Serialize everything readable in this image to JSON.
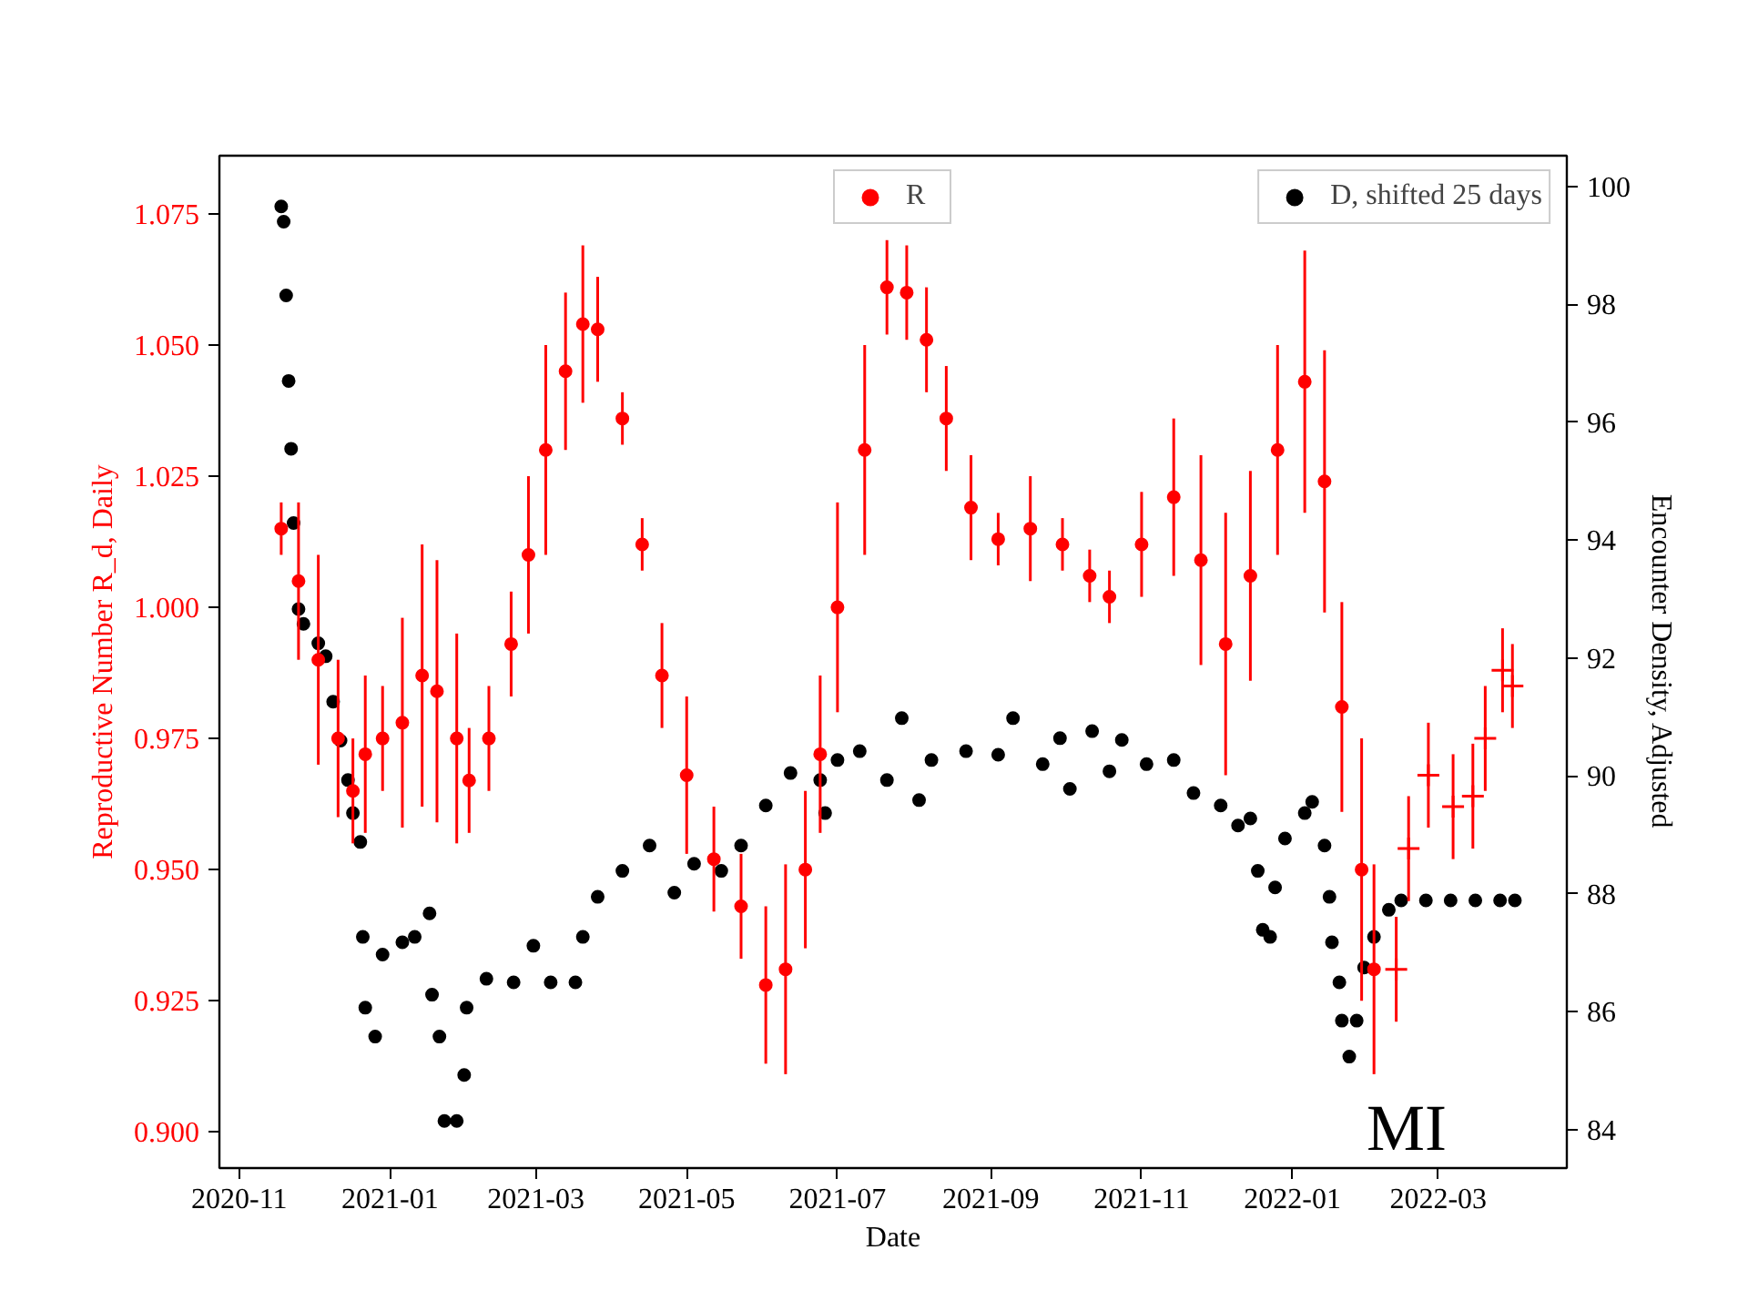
{
  "chart_data": {
    "type": "scatter",
    "xlabel": "Date",
    "ylabel": "Reproductive Number R_d, Daily",
    "y2label": "Encounter Density, Adjusted",
    "annotations": [
      "MI"
    ],
    "xlim": [
      "2020-10-24",
      "2022-04-22"
    ],
    "xticks": [
      "2020-11",
      "2021-01",
      "2021-03",
      "2021-05",
      "2021-07",
      "2021-09",
      "2021-11",
      "2022-01",
      "2022-03"
    ],
    "ylim": [
      0.8931,
      1.0861
    ],
    "yticks": [
      {
        "value": 0.9,
        "label": "0.900"
      },
      {
        "value": 0.925,
        "label": "0.925"
      },
      {
        "value": 0.95,
        "label": "0.950"
      },
      {
        "value": 0.975,
        "label": "0.975"
      },
      {
        "value": 1.0,
        "label": "1.000"
      },
      {
        "value": 1.025,
        "label": "1.025"
      },
      {
        "value": 1.05,
        "label": "1.050"
      },
      {
        "value": 1.075,
        "label": "1.075"
      }
    ],
    "y2lim": [
      83.35,
      100.52
    ],
    "y2ticks": [
      84,
      86,
      88,
      90,
      92,
      94,
      96,
      98,
      100
    ],
    "grid": false,
    "legend": "top right",
    "series": [
      {
        "name": "R",
        "color": "#ff0000",
        "marker": "circle",
        "x": [
          "2020-11-18",
          "2020-11-25",
          "2020-12-03",
          "2020-12-11",
          "2020-12-17",
          "2020-12-22",
          "2020-12-29",
          "2021-01-06",
          "2021-01-14",
          "2021-01-20",
          "2021-01-28",
          "2021-02-02",
          "2021-02-10",
          "2021-02-19",
          "2021-02-26",
          "2021-03-05",
          "2021-03-13",
          "2021-03-20",
          "2021-03-26",
          "2021-04-05",
          "2021-04-13",
          "2021-04-21",
          "2021-05-01",
          "2021-05-12",
          "2021-05-23",
          "2021-06-02",
          "2021-06-10",
          "2021-06-18",
          "2021-06-24",
          "2021-07-01",
          "2021-07-12",
          "2021-07-21",
          "2021-07-29",
          "2021-08-06",
          "2021-08-14",
          "2021-08-24",
          "2021-09-04",
          "2021-09-17",
          "2021-09-30",
          "2021-10-11",
          "2021-10-19",
          "2021-11-01",
          "2021-11-14",
          "2021-11-25",
          "2021-12-05",
          "2021-12-15",
          "2021-12-26",
          "2022-01-06",
          "2022-01-14",
          "2022-01-21",
          "2022-01-29",
          "2022-02-03"
        ],
        "values": [
          1.015,
          1.005,
          0.99,
          0.975,
          0.965,
          0.972,
          0.975,
          0.978,
          0.987,
          0.984,
          0.975,
          0.967,
          0.975,
          0.993,
          1.01,
          1.03,
          1.045,
          1.054,
          1.053,
          1.036,
          1.012,
          0.987,
          0.968,
          0.952,
          0.943,
          0.928,
          0.931,
          0.95,
          0.972,
          1.0,
          1.03,
          1.061,
          1.06,
          1.051,
          1.036,
          1.019,
          1.013,
          1.015,
          1.012,
          1.006,
          1.002,
          1.012,
          1.021,
          1.009,
          0.993,
          1.006,
          1.03,
          1.043,
          1.024,
          0.981,
          0.95,
          0.931
        ],
        "errors": [
          0.005,
          0.015,
          0.02,
          0.015,
          0.01,
          0.015,
          0.01,
          0.02,
          0.025,
          0.025,
          0.02,
          0.01,
          0.01,
          0.01,
          0.015,
          0.02,
          0.015,
          0.015,
          0.01,
          0.005,
          0.005,
          0.01,
          0.015,
          0.01,
          0.01,
          0.015,
          0.02,
          0.015,
          0.015,
          0.02,
          0.02,
          0.009,
          0.009,
          0.01,
          0.01,
          0.01,
          0.005,
          0.01,
          0.005,
          0.005,
          0.005,
          0.01,
          0.015,
          0.02,
          0.025,
          0.02,
          0.02,
          0.025,
          0.025,
          0.02,
          0.025,
          0.02
        ]
      },
      {
        "color": "#ff0000",
        "marker": "cross",
        "x": [
          "2022-02-12",
          "2022-02-17",
          "2022-02-25",
          "2022-03-07",
          "2022-03-15",
          "2022-03-20",
          "2022-03-27",
          "2022-03-31"
        ],
        "values": [
          0.931,
          0.954,
          0.968,
          0.962,
          0.964,
          0.975,
          0.988,
          0.985
        ],
        "errors": [
          0.01,
          0.01,
          0.01,
          0.01,
          0.01,
          0.01,
          0.008,
          0.008
        ]
      },
      {
        "name": "D, shifted 25 days",
        "color": "#000000",
        "marker": "circle",
        "axis": "y2",
        "x": [
          "2020-11-18",
          "2020-11-19",
          "2020-11-20",
          "2020-11-21",
          "2020-11-22",
          "2020-11-23",
          "2020-11-25",
          "2020-11-27",
          "2020-12-03",
          "2020-12-06",
          "2020-12-09",
          "2020-12-12",
          "2020-12-15",
          "2020-12-17",
          "2020-12-20",
          "2020-12-21",
          "2020-12-22",
          "2020-12-26",
          "2020-12-29",
          "2021-01-06",
          "2021-01-11",
          "2021-01-17",
          "2021-01-18",
          "2021-01-21",
          "2021-01-23",
          "2021-01-28",
          "2021-01-31",
          "2021-02-01",
          "2021-02-09",
          "2021-02-20",
          "2021-02-28",
          "2021-03-07",
          "2021-03-17",
          "2021-03-20",
          "2021-03-26",
          "2021-04-05",
          "2021-04-16",
          "2021-04-26",
          "2021-05-04",
          "2021-05-15",
          "2021-05-23",
          "2021-06-02",
          "2021-06-12",
          "2021-06-24",
          "2021-06-26",
          "2021-07-01",
          "2021-07-10",
          "2021-07-21",
          "2021-07-27",
          "2021-08-03",
          "2021-08-08",
          "2021-08-22",
          "2021-09-04",
          "2021-09-10",
          "2021-09-22",
          "2021-09-29",
          "2021-10-03",
          "2021-10-12",
          "2021-10-19",
          "2021-10-24",
          "2021-11-03",
          "2021-11-14",
          "2021-11-22",
          "2021-12-03",
          "2021-12-10",
          "2021-12-15",
          "2021-12-18",
          "2021-12-20",
          "2021-12-23",
          "2021-12-25",
          "2021-12-29",
          "2022-01-06",
          "2022-01-09",
          "2022-01-14",
          "2022-01-16",
          "2022-01-17",
          "2022-01-20",
          "2022-01-21",
          "2022-01-24",
          "2022-01-27",
          "2022-01-30",
          "2022-02-03",
          "2022-02-09",
          "2022-02-14",
          "2022-02-24",
          "2022-03-06",
          "2022-03-16",
          "2022-03-26",
          "2022-04-01"
        ],
        "values": [
          99.66,
          99.4,
          98.15,
          96.7,
          95.55,
          94.29,
          92.83,
          92.58,
          92.25,
          92.03,
          91.26,
          90.6,
          89.93,
          89.37,
          88.88,
          87.27,
          86.07,
          85.58,
          86.97,
          87.18,
          87.27,
          87.67,
          86.29,
          85.58,
          84.15,
          84.15,
          84.93,
          86.07,
          86.56,
          86.5,
          87.12,
          86.5,
          86.5,
          87.27,
          87.95,
          88.39,
          88.82,
          88.02,
          88.51,
          88.39,
          88.82,
          89.5,
          90.05,
          89.93,
          89.37,
          90.27,
          90.42,
          89.93,
          90.98,
          89.59,
          90.27,
          90.42,
          90.36,
          90.98,
          90.2,
          90.64,
          89.78,
          90.76,
          90.08,
          90.61,
          90.2,
          90.27,
          89.71,
          89.5,
          89.16,
          89.28,
          88.39,
          87.39,
          87.27,
          88.11,
          88.94,
          89.37,
          89.56,
          88.82,
          87.95,
          87.18,
          86.5,
          85.85,
          85.24,
          85.85,
          86.75,
          87.27,
          87.73,
          87.89,
          87.89,
          87.89,
          87.89,
          87.89,
          87.89
        ]
      }
    ]
  }
}
